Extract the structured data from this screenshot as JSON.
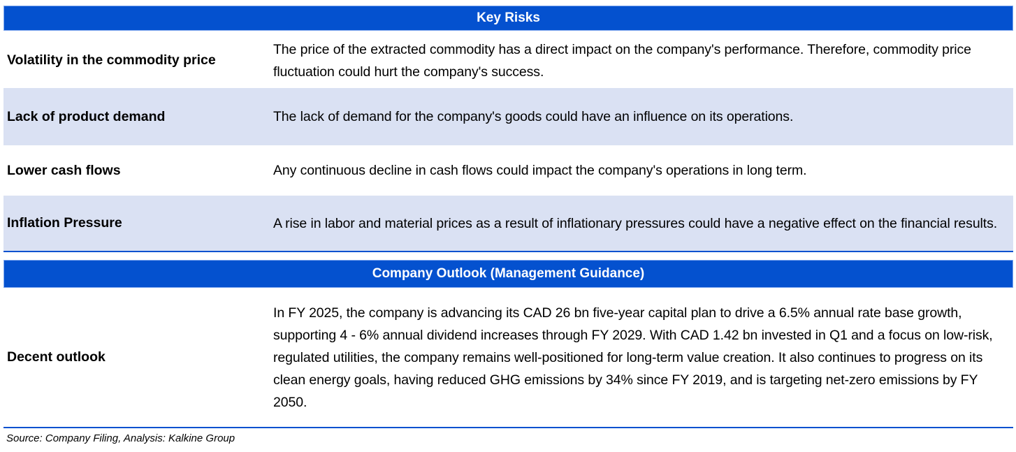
{
  "key_risks": {
    "title": "Key Risks",
    "rows": [
      {
        "label": "Volatility in the commodity price",
        "text": "The price of the extracted commodity has a direct impact on the company's performance. Therefore, commodity price fluctuation could hurt the company's success."
      },
      {
        "label": "Lack of product demand",
        "text": "The lack of demand for the company's goods could have an influence on its operations."
      },
      {
        "label": "Lower cash flows",
        "text": "Any continuous decline in cash flows could impact the company's operations in long term."
      },
      {
        "label": "Inflation Pressure",
        "text": "A rise in labor and material prices as a result of inflationary pressures could have a negative effect on the financial results."
      }
    ]
  },
  "outlook": {
    "title": "Company Outlook (Management Guidance)",
    "rows": [
      {
        "label": "Decent outlook",
        "text": "In FY 2025, the company is advancing its CAD 26 bn five-year capital plan to drive a 6.5% annual rate base growth, supporting 4 - 6% annual dividend increases through FY 2029. With CAD 1.42 bn invested in Q1 and a focus on low-risk, regulated utilities, the company remains well-positioned for long-term value creation. It also continues to progress on its clean energy goals, having reduced GHG emissions by 34% since FY 2019, and is targeting net-zero emissions by FY 2050."
      }
    ]
  },
  "source": "Source: Company Filing, Analysis: Kalkine Group"
}
